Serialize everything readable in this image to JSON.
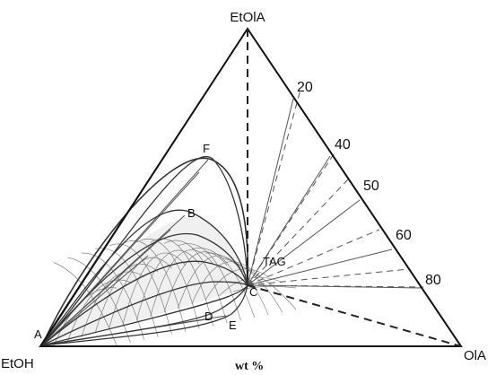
{
  "vertices": {
    "top": "EtOlA",
    "left": "EtOH",
    "right": "OlA"
  },
  "points": {
    "A": "A",
    "B": "B",
    "C": "C",
    "D": "D",
    "E": "E",
    "F": "F",
    "tag": "TAG"
  },
  "edge_ticks": [
    "20",
    "40",
    "50",
    "60",
    "80"
  ],
  "unit": "wt %"
}
